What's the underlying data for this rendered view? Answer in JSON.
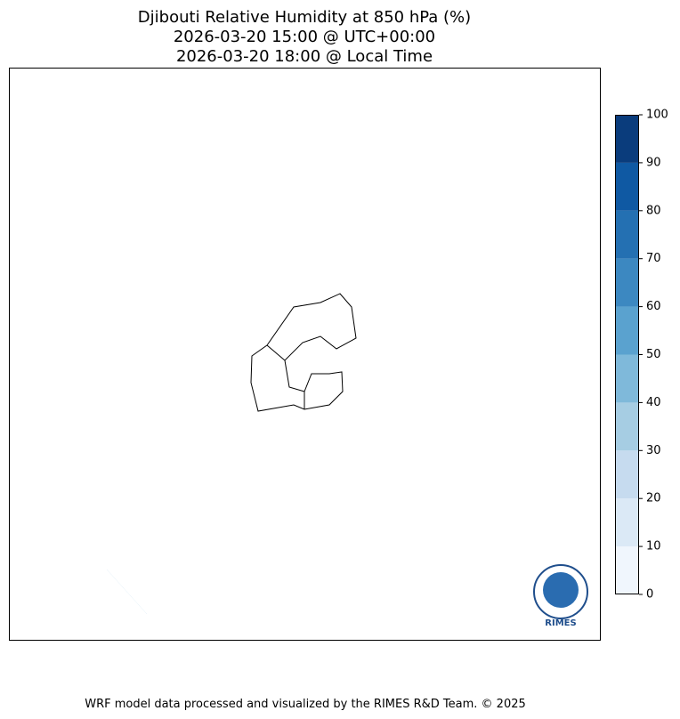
{
  "title": [
    "Djibouti Relative Humidity at 850 hPa (%)",
    "2026-03-20 15:00 @ UTC+00:00",
    "2026-03-20 18:00 @ Local Time"
  ],
  "colorbar": {
    "ticks": [
      0,
      10,
      20,
      30,
      40,
      50,
      60,
      70,
      80,
      90,
      100
    ],
    "colors": [
      "#f0f6fd",
      "#dbe9f6",
      "#c6dbef",
      "#a6cde3",
      "#7fb9da",
      "#5aa2cf",
      "#3c88c1",
      "#2470b2",
      "#0f59a3",
      "#0a3c7c"
    ]
  },
  "logo": "RIMES",
  "footer": "WRF model data processed and visualized by the RIMES R&D Team. © 2025"
}
